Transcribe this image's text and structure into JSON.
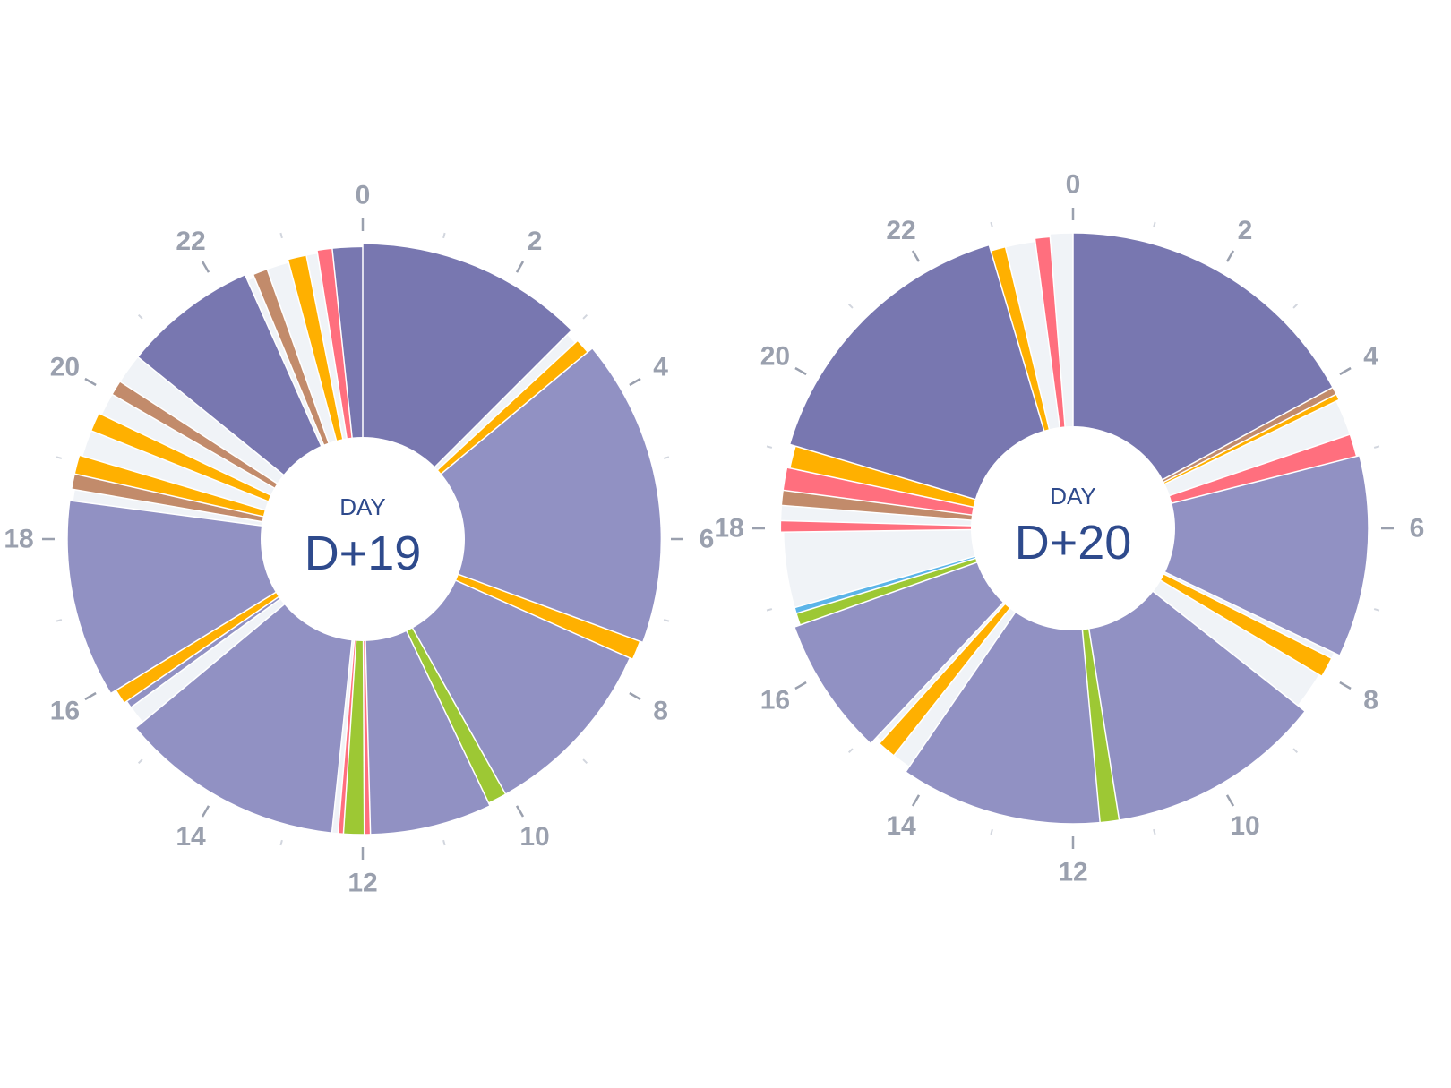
{
  "colors": {
    "Sleep": "#7877b0",
    "Rest": "#9191c3",
    "Feed": "#ffb000",
    "Diaper": "#c28b6b",
    "Alert": "#ff6f7e",
    "Play": "#9dc834",
    "Bath": "#5bb4e8",
    "Awake": "#f0f3f7",
    "center": "#ffffff",
    "center_text": "#2e4a8c",
    "tick": "#9aa0ae",
    "divider": "#ffffff"
  },
  "chart_data": [
    {
      "type": "pie",
      "variant": "24h-clock-donut",
      "center_label": "DAY",
      "center_value": "D+19",
      "hour_ticks": [
        "0",
        "2",
        "4",
        "6",
        "8",
        "10",
        "12",
        "14",
        "16",
        "18",
        "20",
        "22"
      ],
      "segments": [
        {
          "category": "Sleep",
          "start": 0.0,
          "end": 3.0,
          "radius": 0.98
        },
        {
          "category": "Awake",
          "start": 3.0,
          "end": 3.15,
          "radius": 0.96
        },
        {
          "category": "Feed",
          "start": 3.15,
          "end": 3.35,
          "radius": 0.97
        },
        {
          "category": "Rest",
          "start": 3.35,
          "end": 7.35,
          "radius": 0.99
        },
        {
          "category": "Feed",
          "start": 7.35,
          "end": 7.6,
          "radius": 0.98
        },
        {
          "category": "Rest",
          "start": 7.6,
          "end": 10.05,
          "radius": 0.97
        },
        {
          "category": "Play",
          "start": 10.05,
          "end": 10.3,
          "radius": 0.97
        },
        {
          "category": "Rest",
          "start": 10.3,
          "end": 11.9,
          "radius": 0.98
        },
        {
          "category": "Alert",
          "start": 11.9,
          "end": 11.98,
          "radius": 0.98
        },
        {
          "category": "Play",
          "start": 11.98,
          "end": 12.25,
          "radius": 0.98
        },
        {
          "category": "Alert",
          "start": 12.25,
          "end": 12.32,
          "radius": 0.98
        },
        {
          "category": "Awake",
          "start": 12.32,
          "end": 12.4,
          "radius": 0.98
        },
        {
          "category": "Rest",
          "start": 12.4,
          "end": 15.35,
          "radius": 0.98
        },
        {
          "category": "Awake",
          "start": 15.35,
          "end": 15.6,
          "radius": 0.95
        },
        {
          "category": "Rest",
          "start": 15.6,
          "end": 15.7,
          "radius": 0.95
        },
        {
          "category": "Feed",
          "start": 15.7,
          "end": 15.9,
          "radius": 0.96
        },
        {
          "category": "Rest",
          "start": 15.9,
          "end": 18.5,
          "radius": 0.98
        },
        {
          "category": "Awake",
          "start": 18.5,
          "end": 18.65,
          "radius": 0.97
        },
        {
          "category": "Diaper",
          "start": 18.65,
          "end": 18.85,
          "radius": 0.98
        },
        {
          "category": "Feed",
          "start": 18.85,
          "end": 19.1,
          "radius": 0.98
        },
        {
          "category": "Awake",
          "start": 19.1,
          "end": 19.45,
          "radius": 0.97
        },
        {
          "category": "Feed",
          "start": 19.45,
          "end": 19.7,
          "radius": 0.97
        },
        {
          "category": "Awake",
          "start": 19.7,
          "end": 20.0,
          "radius": 0.96
        },
        {
          "category": "Diaper",
          "start": 20.0,
          "end": 20.2,
          "radius": 0.96
        },
        {
          "category": "Awake",
          "start": 20.2,
          "end": 20.6,
          "radius": 0.96
        },
        {
          "category": "Sleep",
          "start": 20.6,
          "end": 22.4,
          "radius": 0.96
        },
        {
          "category": "Awake",
          "start": 22.4,
          "end": 22.5,
          "radius": 0.94
        },
        {
          "category": "Diaper",
          "start": 22.5,
          "end": 22.7,
          "radius": 0.95
        },
        {
          "category": "Awake",
          "start": 22.7,
          "end": 23.0,
          "radius": 0.95
        },
        {
          "category": "Feed",
          "start": 23.0,
          "end": 23.25,
          "radius": 0.96
        },
        {
          "category": "Awake",
          "start": 23.25,
          "end": 23.4,
          "radius": 0.96
        },
        {
          "category": "Alert",
          "start": 23.4,
          "end": 23.6,
          "radius": 0.97
        },
        {
          "category": "Sleep",
          "start": 23.6,
          "end": 24.0,
          "radius": 0.97
        }
      ]
    },
    {
      "type": "pie",
      "variant": "24h-clock-donut",
      "center_label": "DAY",
      "center_value": "D+20",
      "hour_ticks": [
        "0",
        "2",
        "4",
        "6",
        "8",
        "10",
        "12",
        "14",
        "16",
        "18",
        "20",
        "22"
      ],
      "segments": [
        {
          "category": "Sleep",
          "start": 0.0,
          "end": 4.1,
          "radius": 0.98
        },
        {
          "category": "Diaper",
          "start": 4.1,
          "end": 4.2,
          "radius": 0.98
        },
        {
          "category": "Feed",
          "start": 4.2,
          "end": 4.28,
          "radius": 0.98
        },
        {
          "category": "Awake",
          "start": 4.28,
          "end": 4.75,
          "radius": 0.97
        },
        {
          "category": "Alert",
          "start": 4.75,
          "end": 5.05,
          "radius": 0.97
        },
        {
          "category": "Rest",
          "start": 5.05,
          "end": 7.7,
          "radius": 0.98
        },
        {
          "category": "Awake",
          "start": 7.7,
          "end": 7.78,
          "radius": 0.96
        },
        {
          "category": "Feed",
          "start": 7.78,
          "end": 8.05,
          "radius": 0.96
        },
        {
          "category": "Awake",
          "start": 8.05,
          "end": 8.55,
          "radius": 0.95
        },
        {
          "category": "Rest",
          "start": 8.55,
          "end": 11.4,
          "radius": 0.98
        },
        {
          "category": "Play",
          "start": 11.4,
          "end": 11.65,
          "radius": 0.98
        },
        {
          "category": "Rest",
          "start": 11.65,
          "end": 14.3,
          "radius": 0.98
        },
        {
          "category": "Awake",
          "start": 14.3,
          "end": 14.55,
          "radius": 0.96
        },
        {
          "category": "Feed",
          "start": 14.55,
          "end": 14.8,
          "radius": 0.96
        },
        {
          "category": "Awake",
          "start": 14.8,
          "end": 14.88,
          "radius": 0.95
        },
        {
          "category": "Rest",
          "start": 14.88,
          "end": 16.7,
          "radius": 0.98
        },
        {
          "category": "Play",
          "start": 16.7,
          "end": 16.86,
          "radius": 0.96
        },
        {
          "category": "Bath",
          "start": 16.86,
          "end": 16.94,
          "radius": 0.96
        },
        {
          "category": "Awake",
          "start": 16.94,
          "end": 17.95,
          "radius": 0.96
        },
        {
          "category": "Alert",
          "start": 17.95,
          "end": 18.1,
          "radius": 0.97
        },
        {
          "category": "Awake",
          "start": 18.1,
          "end": 18.3,
          "radius": 0.97
        },
        {
          "category": "Diaper",
          "start": 18.3,
          "end": 18.5,
          "radius": 0.97
        },
        {
          "category": "Alert",
          "start": 18.5,
          "end": 18.8,
          "radius": 0.97
        },
        {
          "category": "Feed",
          "start": 18.8,
          "end": 19.1,
          "radius": 0.96
        },
        {
          "category": "Sleep",
          "start": 19.1,
          "end": 22.9,
          "radius": 0.98
        },
        {
          "category": "Feed",
          "start": 22.9,
          "end": 23.1,
          "radius": 0.96
        },
        {
          "category": "Awake",
          "start": 23.1,
          "end": 23.5,
          "radius": 0.96
        },
        {
          "category": "Alert",
          "start": 23.5,
          "end": 23.7,
          "radius": 0.97
        },
        {
          "category": "Awake",
          "start": 23.7,
          "end": 24.0,
          "radius": 0.98
        }
      ]
    }
  ]
}
